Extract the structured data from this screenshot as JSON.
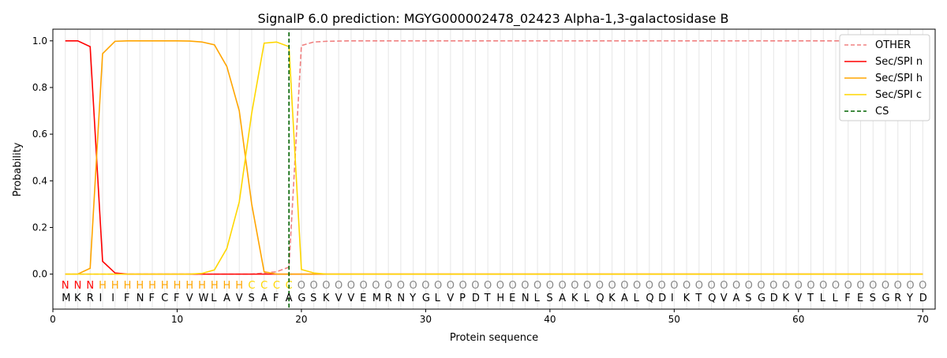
{
  "chart_data": {
    "type": "line",
    "title": "SignalP 6.0 prediction: MGYG000002478_02423 Alpha-1,3-galactosidase B",
    "xlabel": "Protein sequence",
    "ylabel": "Probability",
    "xlim": [
      0,
      71
    ],
    "ylim": [
      -0.15,
      1.05
    ],
    "xticks": [
      0,
      10,
      20,
      30,
      40,
      50,
      60,
      70
    ],
    "yticks": [
      "0.0",
      "0.2",
      "0.4",
      "0.6",
      "0.8",
      "1.0"
    ],
    "legend_position": "top-right",
    "sequence": "MKRIIFNFCFVWLAVSAFAGSKVVEMRNYGLVPDTHENLSAKLQKALQDIKTQVASGDKVTLLFESGRYD",
    "labels": "NNNHHHHHHHHHHHHCCCCOOOOOOOOOOOOOOOOOOOOOOOOOOOOOOOOOOOOOOOOOOOOOOOOOOO",
    "label_colors": {
      "N": "#ff0000",
      "H": "#ffa500",
      "C": "#ffd700",
      "O": "#888888"
    },
    "cs_position": 19,
    "series": [
      {
        "name": "OTHER",
        "color": "#f08080",
        "dash": true,
        "values": [
          0,
          0,
          0,
          0,
          0,
          0,
          0,
          0,
          0,
          0,
          0,
          0,
          0,
          0,
          0,
          0,
          0.005,
          0.01,
          0.03,
          0.98,
          0.995,
          0.998,
          0.999,
          1,
          1,
          1,
          1,
          1,
          1,
          1,
          1,
          1,
          1,
          1,
          1,
          1,
          1,
          1,
          1,
          1,
          1,
          1,
          1,
          1,
          1,
          1,
          1,
          1,
          1,
          1,
          1,
          1,
          1,
          1,
          1,
          1,
          1,
          1,
          1,
          1,
          1,
          1,
          1,
          1,
          1,
          1,
          1,
          1,
          1,
          1
        ]
      },
      {
        "name": "Sec/SPI n",
        "color": "#ff0000",
        "values": [
          1,
          1,
          0.975,
          0.055,
          0.005,
          0,
          0,
          0,
          0,
          0,
          0,
          0,
          0,
          0,
          0,
          0,
          0,
          0,
          0,
          0,
          0,
          0,
          0,
          0,
          0,
          0,
          0,
          0,
          0,
          0,
          0,
          0,
          0,
          0,
          0,
          0,
          0,
          0,
          0,
          0,
          0,
          0,
          0,
          0,
          0,
          0,
          0,
          0,
          0,
          0,
          0,
          0,
          0,
          0,
          0,
          0,
          0,
          0,
          0,
          0,
          0,
          0,
          0,
          0,
          0,
          0,
          0,
          0,
          0,
          0
        ]
      },
      {
        "name": "Sec/SPI h",
        "color": "#ffa500",
        "values": [
          0,
          0,
          0.025,
          0.945,
          0.998,
          1,
          1,
          1,
          1,
          1,
          0.999,
          0.995,
          0.983,
          0.89,
          0.7,
          0.3,
          0.01,
          0,
          0,
          0,
          0,
          0,
          0,
          0,
          0,
          0,
          0,
          0,
          0,
          0,
          0,
          0,
          0,
          0,
          0,
          0,
          0,
          0,
          0,
          0,
          0,
          0,
          0,
          0,
          0,
          0,
          0,
          0,
          0,
          0,
          0,
          0,
          0,
          0,
          0,
          0,
          0,
          0,
          0,
          0,
          0,
          0,
          0,
          0,
          0,
          0,
          0,
          0,
          0,
          0
        ]
      },
      {
        "name": "Sec/SPI c",
        "color": "#ffd700",
        "values": [
          0,
          0,
          0,
          0,
          0,
          0,
          0,
          0,
          0,
          0,
          0,
          0.003,
          0.018,
          0.11,
          0.31,
          0.69,
          0.99,
          0.995,
          0.975,
          0.02,
          0.005,
          0,
          0,
          0,
          0,
          0,
          0,
          0,
          0,
          0,
          0,
          0,
          0,
          0,
          0,
          0,
          0,
          0,
          0,
          0,
          0,
          0,
          0,
          0,
          0,
          0,
          0,
          0,
          0,
          0,
          0,
          0,
          0,
          0,
          0,
          0,
          0,
          0,
          0,
          0,
          0,
          0,
          0,
          0,
          0,
          0,
          0,
          0,
          0,
          0
        ]
      }
    ],
    "cs_legend": {
      "name": "CS",
      "color": "#006400"
    }
  }
}
